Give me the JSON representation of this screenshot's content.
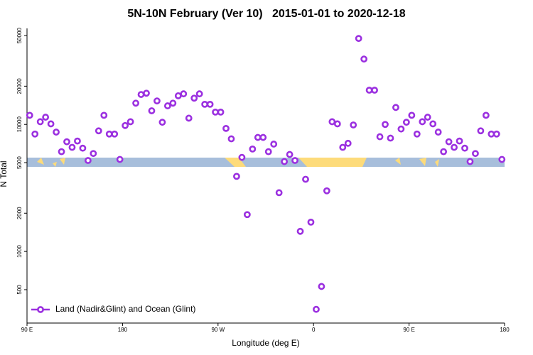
{
  "chart_data": {
    "type": "scatter",
    "title": "5N-10N February (Ver 10)   2015-01-01 to 2020-12-18",
    "x_label": "Longitude (deg E)",
    "y_label": "N Total",
    "x": [
      92.5,
      97.5,
      102.5,
      107.5,
      112.5,
      117.5,
      122.5,
      127.5,
      132.5,
      137.5,
      142.5,
      147.5,
      152.5,
      157.5,
      162.5,
      167.5,
      172.5,
      177.5,
      182.5,
      187.5,
      192.5,
      197.5,
      202.5,
      207.5,
      212.5,
      217.5,
      222.5,
      227.5,
      232.5,
      237.5,
      242.5,
      247.5,
      252.5,
      257.5,
      262.5,
      267.5,
      272.5,
      277.5,
      282.5,
      287.5,
      292.5,
      297.5,
      302.5,
      307.5,
      312.5,
      317.5,
      322.5,
      327.5,
      332.5,
      337.5,
      342.5,
      347.5,
      352.5,
      357.5,
      362.5,
      367.5,
      372.5,
      377.5,
      382.5,
      387.5,
      392.5,
      397.5,
      402.5,
      407.5,
      412.5,
      417.5,
      422.5,
      427.5,
      432.5,
      437.5,
      442.5,
      447.5,
      452.5,
      457.5,
      462.5,
      467.5,
      472.5,
      477.5,
      482.5,
      487.5,
      492.5,
      497.5,
      502.5,
      507.5,
      512.5,
      517.5,
      522.5,
      527.5,
      532.5,
      537.5
    ],
    "series": [
      {
        "name": "Land (Nadir&Glint) and Ocean (Glint)",
        "color": "#9b30e0",
        "values": [
          11800,
          8400,
          10500,
          11400,
          10100,
          8700,
          6100,
          7300,
          6600,
          7400,
          6500,
          5200,
          5900,
          8900,
          11800,
          8400,
          8400,
          5300,
          9800,
          10500,
          14700,
          17200,
          17600,
          12800,
          15300,
          10400,
          14000,
          14700,
          16800,
          17400,
          11200,
          16100,
          17400,
          14400,
          14400,
          12500,
          12500,
          9300,
          7700,
          3900,
          5500,
          1950,
          6400,
          7900,
          7900,
          6100,
          7000,
          2900,
          5100,
          5800,
          5200,
          1440,
          3700,
          1700,
          350,
          530,
          3000,
          10500,
          10100,
          6600,
          7100,
          9900,
          47500,
          32700,
          18600,
          18600,
          8000,
          10000,
          7800,
          13600,
          9200,
          10400,
          11800,
          8400,
          10500,
          11400,
          10100,
          8700,
          6100,
          7300,
          6600,
          7400,
          6500,
          5100,
          5900,
          8900,
          11800,
          8400,
          8400,
          5300
        ]
      }
    ],
    "xlim": [
      90,
      540
    ],
    "xticks": [
      {
        "value": 90,
        "label": "90 E"
      },
      180,
      {
        "value": 270,
        "label": "90 W"
      },
      {
        "value": 360,
        "label": "0"
      },
      {
        "value": 450,
        "label": "90 E"
      },
      {
        "value": 540,
        "label": "180"
      }
    ],
    "ylim": [
      273,
      57000
    ],
    "yticks": [
      500,
      1000,
      2000,
      5000,
      10000,
      20000,
      50000
    ],
    "log_y": true,
    "legend": "bottom-left"
  }
}
